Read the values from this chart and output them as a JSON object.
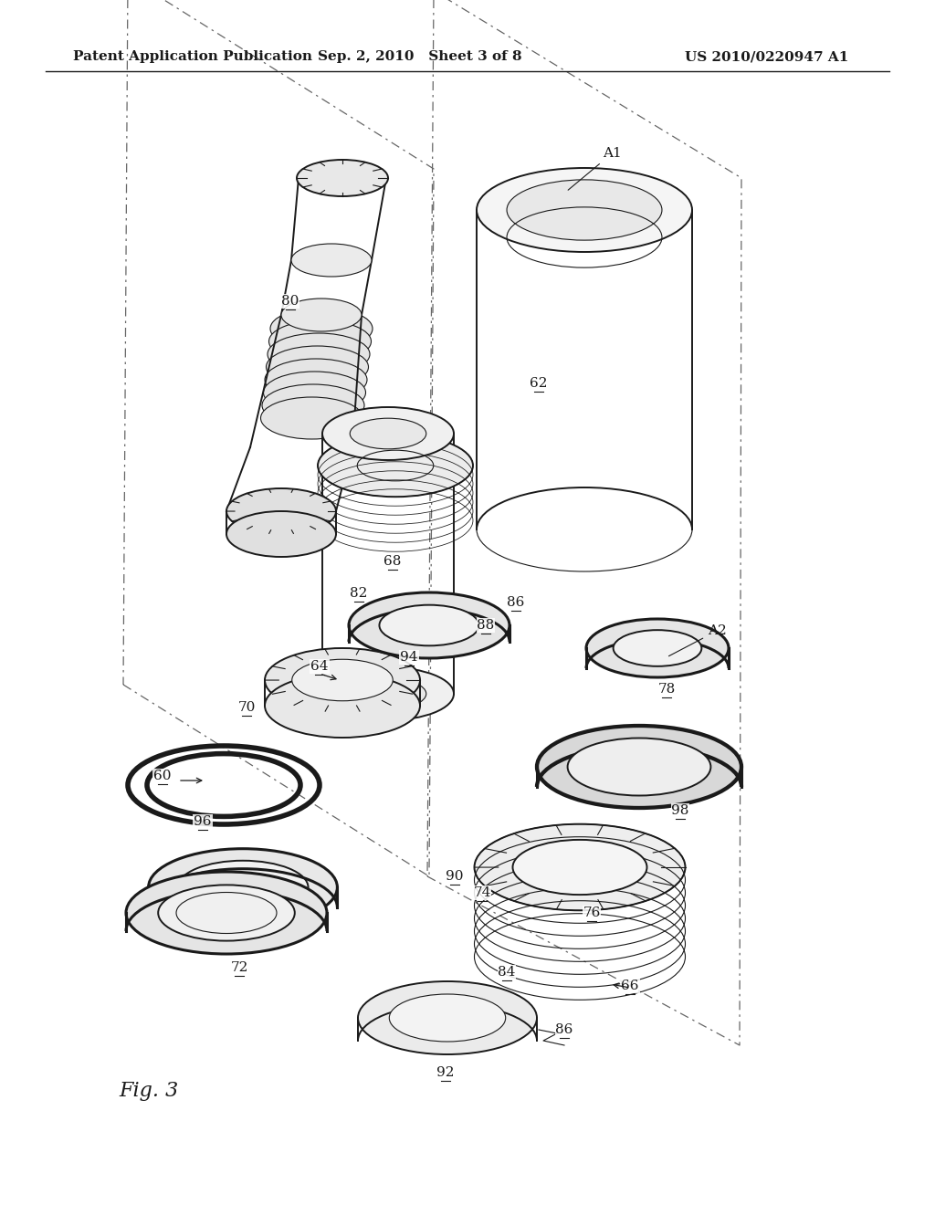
{
  "background_color": "#ffffff",
  "line_color": "#1a1a1a",
  "header_left": "Patent Application Publication",
  "header_center": "Sep. 2, 2010   Sheet 3 of 8",
  "header_right": "US 2010/0220947 A1",
  "fig_label": "Fig. 3",
  "title_fontsize": 11,
  "label_fontsize": 10,
  "fig_label_fontsize": 16
}
